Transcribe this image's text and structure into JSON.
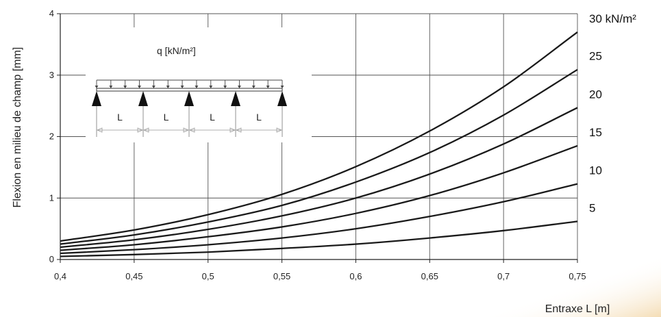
{
  "chart_data": {
    "type": "line",
    "xlabel": "Entraxe L [m]",
    "ylabel": "Flexion en milieu de champ [mm]",
    "xlim": [
      0.4,
      0.75
    ],
    "ylim": [
      0,
      4
    ],
    "x_ticks": [
      {
        "value": 0.4,
        "label": "0,4"
      },
      {
        "value": 0.45,
        "label": "0,45"
      },
      {
        "value": 0.5,
        "label": "0,5"
      },
      {
        "value": 0.55,
        "label": "0,55"
      },
      {
        "value": 0.6,
        "label": "0,6"
      },
      {
        "value": 0.65,
        "label": "0,65"
      },
      {
        "value": 0.7,
        "label": "0,7"
      },
      {
        "value": 0.75,
        "label": "0,75"
      }
    ],
    "y_ticks": [
      {
        "value": 0,
        "label": "0"
      },
      {
        "value": 1,
        "label": "1"
      },
      {
        "value": 2,
        "label": "2"
      },
      {
        "value": 3,
        "label": "3"
      },
      {
        "value": 4,
        "label": "4"
      }
    ],
    "grid": true,
    "x": [
      0.4,
      0.45,
      0.5,
      0.55,
      0.6,
      0.65,
      0.7,
      0.75
    ],
    "series": [
      {
        "name": "5",
        "values": [
          0.05,
          0.08,
          0.12,
          0.18,
          0.25,
          0.35,
          0.47,
          0.62
        ]
      },
      {
        "name": "10",
        "values": [
          0.1,
          0.16,
          0.24,
          0.35,
          0.5,
          0.7,
          0.94,
          1.23
        ]
      },
      {
        "name": "15",
        "values": [
          0.15,
          0.24,
          0.37,
          0.53,
          0.75,
          1.04,
          1.41,
          1.85
        ]
      },
      {
        "name": "20",
        "values": [
          0.2,
          0.32,
          0.49,
          0.71,
          1.0,
          1.39,
          1.88,
          2.47
        ]
      },
      {
        "name": "25",
        "values": [
          0.25,
          0.4,
          0.61,
          0.88,
          1.26,
          1.74,
          2.35,
          3.09
        ]
      },
      {
        "name": "30 kN/m²",
        "values": [
          0.3,
          0.48,
          0.73,
          1.06,
          1.51,
          2.09,
          2.81,
          3.7
        ]
      }
    ],
    "line_color": "#1a1a1a",
    "grid_color": "#555555"
  },
  "inset": {
    "load_label": "q [kN/m²]",
    "span_labels": [
      "L",
      "L",
      "L",
      "L"
    ]
  },
  "background": {
    "wash_color": "#f3d9ad"
  }
}
